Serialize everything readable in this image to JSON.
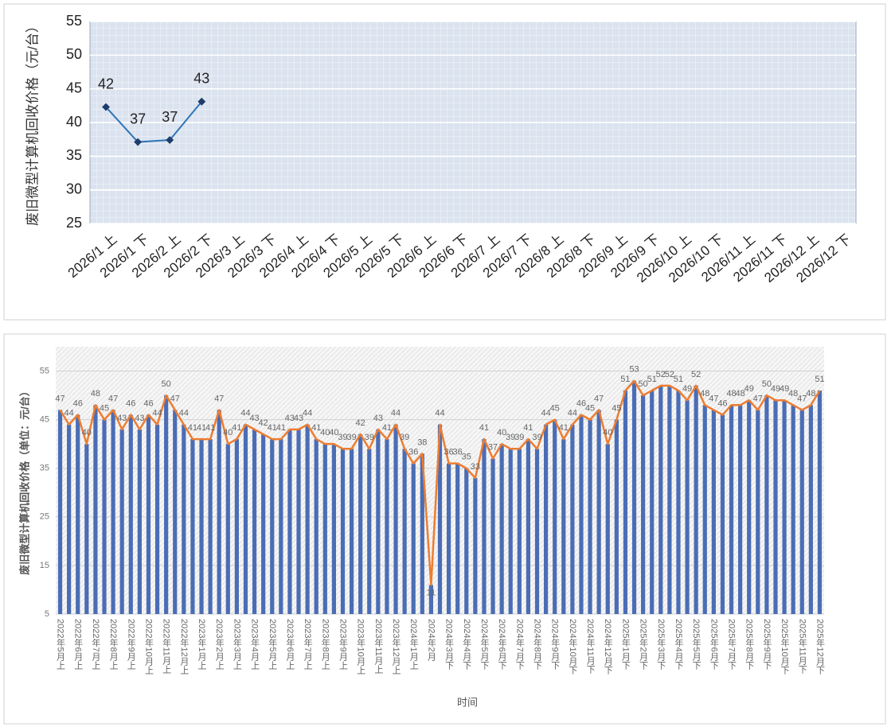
{
  "chart_data": [
    {
      "type": "line",
      "y_label": "废旧微型计算机回收价格（元/台）",
      "categories": [
        "2026/1 上",
        "2026/1 下",
        "2026/2 上",
        "2026/2 下",
        "2026/3 上",
        "2026/3 下",
        "2026/4 上",
        "2026/4 下",
        "2026/5 上",
        "2026/5 下",
        "2026/6 上",
        "2026/6 下",
        "2026/7 上",
        "2026/7 下",
        "2026/8 上",
        "2026/8 下",
        "2026/9 上",
        "2026/9 下",
        "2026/10 上",
        "2026/10 下",
        "2026/11 上",
        "2026/11 下",
        "2026/12 上",
        "2026/12 下"
      ],
      "values": [
        42.3,
        37.1,
        37.4,
        43.1,
        null,
        null,
        null,
        null,
        null,
        null,
        null,
        null,
        null,
        null,
        null,
        null,
        null,
        null,
        null,
        null,
        null,
        null,
        null,
        null
      ],
      "value_labels": [
        "42",
        "37",
        "37",
        "43",
        null,
        null,
        null,
        null,
        null,
        null,
        null,
        null,
        null,
        null,
        null,
        null,
        null,
        null,
        null,
        null,
        null,
        null,
        null,
        null
      ],
      "color": "#2e75b6",
      "ylim": [
        25,
        55
      ],
      "yticks": [
        25,
        30,
        35,
        40,
        45,
        50,
        55
      ],
      "grid": true
    },
    {
      "type": "combo",
      "y_label": "废旧微型计算机回收价格（单位：元/台）",
      "x_label": "时间",
      "categories": [
        "2022年5月上",
        null,
        "2022年6月上",
        null,
        "2022年7月上",
        null,
        "2022年8月上",
        null,
        "2022年9月上",
        null,
        "2022年10月上",
        null,
        "2022年11月上",
        null,
        "2022年12月上",
        null,
        "2023年1月上",
        null,
        "2023年2月上",
        null,
        "2023年3月上",
        null,
        "2023年4月上",
        null,
        "2023年5月上",
        null,
        "2023年6月上",
        null,
        "2023年7月上",
        null,
        "2023年8月上",
        null,
        "2023年9月上",
        null,
        "2023年10月上",
        null,
        "2023年11月上",
        null,
        "2023年12月上",
        null,
        "2024年1月上",
        null,
        "2024年2月",
        null,
        "2024年3月下",
        null,
        "2024年4月下",
        null,
        "2024年5月下",
        null,
        "2024年6月下",
        null,
        "2024年7月下",
        null,
        "2024年8月下",
        null,
        "2024年9月下",
        null,
        "2024年10月下",
        null,
        "2024年11月下",
        null,
        "2024年12月下",
        null,
        "2025年1月下",
        null,
        "2025年2月下",
        null,
        "2025年3月下",
        null,
        "2025年4月下",
        null,
        "2025年5月下",
        null,
        "2025年6月下",
        null,
        "2025年7月下",
        null,
        "2025年8月下",
        null,
        "2025年9月下",
        null,
        "2025年10月下",
        null,
        "2025年11月下",
        null,
        "2025年12月下"
      ],
      "values": [
        47,
        44,
        46,
        40,
        48,
        45,
        47,
        43,
        46,
        43,
        46,
        44,
        50,
        47,
        44,
        41,
        41,
        41,
        47,
        40,
        41,
        44,
        43,
        42,
        41,
        41,
        43,
        43,
        44,
        41,
        40,
        40,
        39,
        39,
        42,
        39,
        43,
        41,
        44,
        39,
        36,
        38,
        11,
        44,
        36,
        36,
        35,
        33,
        41,
        37,
        40,
        39,
        39,
        41,
        39,
        44,
        45,
        41,
        44,
        46,
        45,
        47,
        40,
        45,
        51,
        53,
        50,
        51,
        52,
        52,
        51,
        49,
        52,
        48,
        47,
        46,
        48,
        48,
        49,
        47,
        50,
        49,
        49,
        48,
        47,
        48,
        51
      ],
      "bar_color": "#4a6db5",
      "line_color": "#ed7d31",
      "ylim": [
        5,
        60
      ],
      "yticks": [
        5,
        15,
        25,
        35,
        45,
        55
      ],
      "grid": true
    }
  ]
}
